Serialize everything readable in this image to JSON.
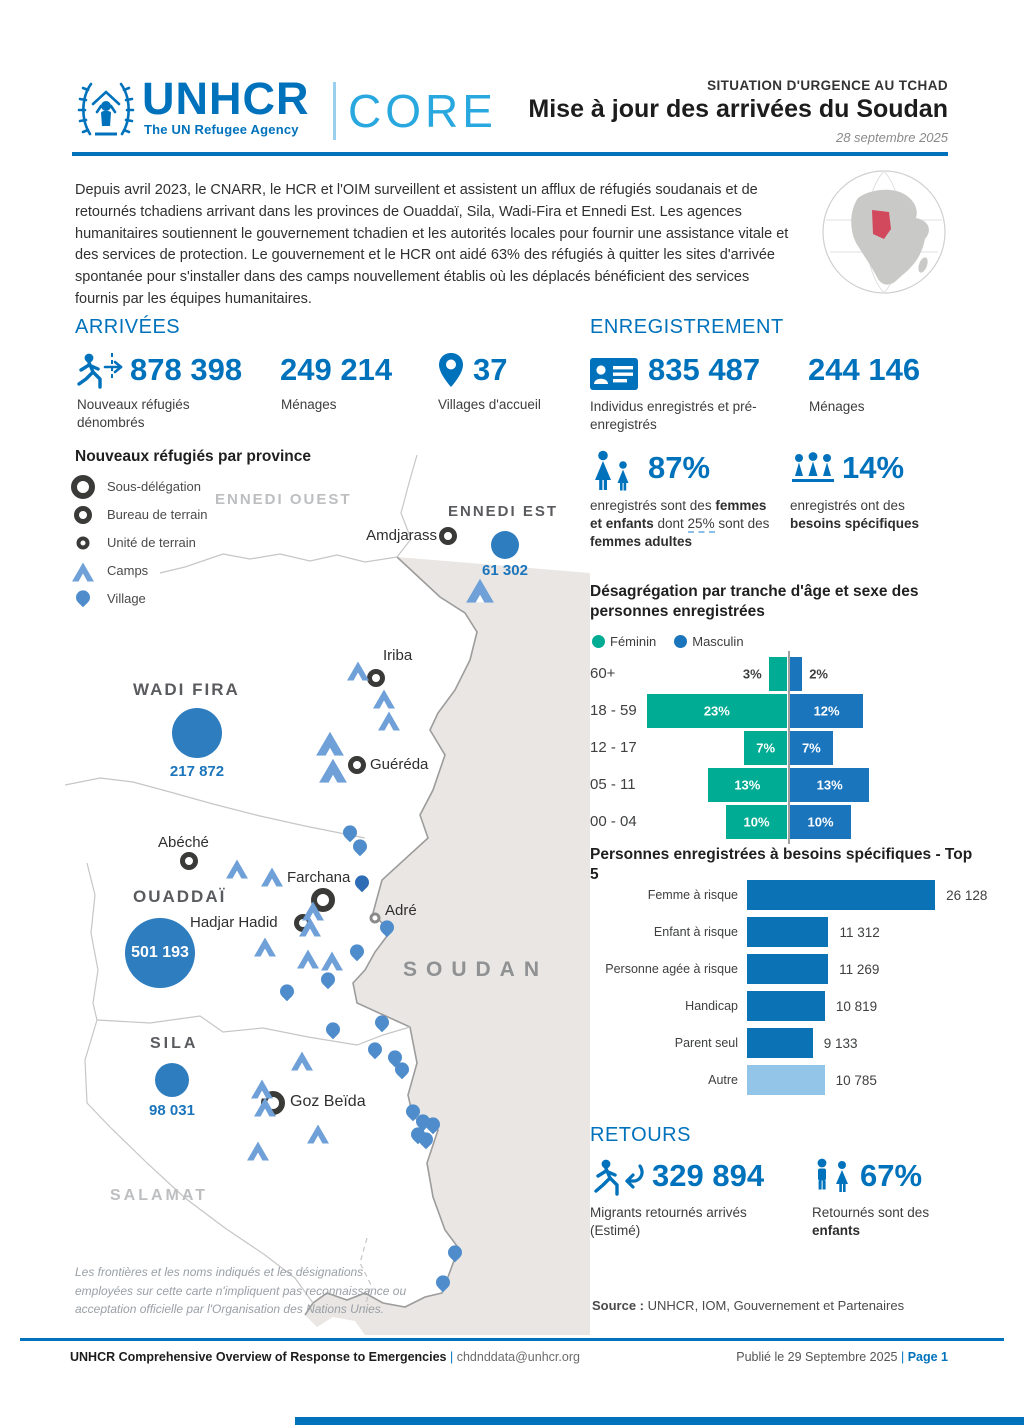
{
  "header": {
    "logo_name": "UNHCR",
    "logo_tagline": "The UN Refugee Agency",
    "logo_core": "CORE",
    "kicker": "SITUATION D'URGENCE AU TCHAD",
    "title": "Mise à jour des arrivées du Soudan",
    "date": "28 septembre 2025"
  },
  "intro": "Depuis avril 2023, le CNARR, le HCR et l'OIM surveillent et assistent un afflux de réfugiés soudanais et de retournés tchadiens arrivant dans les provinces de Ouaddaï, Sila, Wadi-Fira et Ennedi Est. Les agences humanitaires soutiennent le gouvernement tchadien et les autorités locales pour fournir une assistance vitale et des services de protection. Le gouvernement et le HCR ont aidé 63% des réfugiés à quitter les sites d'arrivée spontanée pour s'installer dans des camps nouvellement établis où les déplacés bénéficient des services fournis par les équipes humanitaires.",
  "arrivees": {
    "title": "ARRIVÉES",
    "stats": [
      {
        "value": "878 398",
        "label": "Nouveaux réfugiés dénombrés"
      },
      {
        "value": "249 214",
        "label": "Ménages"
      },
      {
        "value": "37",
        "label": "Villages d'accueil"
      }
    ]
  },
  "map": {
    "title": "Nouveaux réfugiés par province",
    "legend": [
      {
        "label": "Sous-délégation"
      },
      {
        "label": "Bureau de terrain"
      },
      {
        "label": "Unité de terrain"
      },
      {
        "label": "Camps"
      },
      {
        "label": "Village"
      }
    ],
    "provinces": [
      {
        "name": "ENNEDI OUEST"
      },
      {
        "name": "ENNEDI EST"
      },
      {
        "name": "WADI FIRA"
      },
      {
        "name": "OUADDAÏ"
      },
      {
        "name": "SILA"
      },
      {
        "name": "SALAMAT"
      }
    ],
    "country": "SOUDAN",
    "towns": [
      {
        "name": "Amdjarass",
        "type": "bureau-de-terrain"
      },
      {
        "name": "Iriba",
        "type": "bureau-de-terrain"
      },
      {
        "name": "Guéréda",
        "type": "bureau-de-terrain"
      },
      {
        "name": "Abéché",
        "type": "bureau-de-terrain"
      },
      {
        "name": "Farchana",
        "type": "sous-delegation"
      },
      {
        "name": "Hadjar Hadid",
        "type": "bureau-de-terrain"
      },
      {
        "name": "Adré",
        "type": "unite-de-terrain"
      },
      {
        "name": "Goz Beïda",
        "type": "sous-delegation"
      }
    ],
    "bubbles": [
      {
        "province": "ENNEDI EST",
        "value": "61 302"
      },
      {
        "province": "WADI FIRA",
        "value": "217 872"
      },
      {
        "province": "OUADDAÏ",
        "value": "501 193"
      },
      {
        "province": "SILA",
        "value": "98 031"
      }
    ],
    "disclaimer": "Les frontières et les noms indiqués et les désignations employées sur cette carte n'impliquent pas reconnaissance ou acceptation officielle par l'Organisation des Nations Unies."
  },
  "enregistrement": {
    "title": "ENREGISTREMENT",
    "stats": [
      {
        "value": "835 487",
        "label": "Individus enregistrés et pré-enregistrés"
      },
      {
        "value": "244 146",
        "label": "Ménages"
      }
    ],
    "women_children": {
      "value": "87%",
      "text_pre": "enregistrés sont des ",
      "text_bold": "femmes et enfants",
      "text_mid": " dont ",
      "text_underline": "25%",
      "text_mid2": " sont des ",
      "text_bold2": "femmes adultes"
    },
    "specific_needs": {
      "value": "14%",
      "text_pre": "enregistrés ont des ",
      "text_bold": "besoins spécifiques"
    }
  },
  "chart_data": [
    {
      "type": "bar",
      "subtype": "population-pyramid",
      "title": "Désagrégation par tranche d'âge et sexe des personnes enregistrées",
      "categories": [
        "60+",
        "18 - 59",
        "12 - 17",
        "05 - 11",
        "00 - 04"
      ],
      "series": [
        {
          "name": "Féminin",
          "color": "#00AC93",
          "unit": "%",
          "values": [
            3,
            23,
            7,
            13,
            10
          ],
          "labels": [
            "3%",
            "23%",
            "7%",
            "13%",
            "10%"
          ]
        },
        {
          "name": "Masculin",
          "color": "#1B75BC",
          "unit": "%",
          "values": [
            2,
            12,
            7,
            13,
            10
          ],
          "labels": [
            "2%",
            "12%",
            "7%",
            "13%",
            "10%"
          ]
        }
      ],
      "legend_position": "top",
      "grid": false
    },
    {
      "type": "bar",
      "subtype": "horizontal",
      "title": "Personnes enregistrées à besoins spécifiques - Top 5",
      "categories": [
        "Femme à risque",
        "Enfant à risque",
        "Personne agée à risque",
        "Handicap",
        "Parent seul",
        "Autre"
      ],
      "values": [
        26128,
        11312,
        11269,
        10819,
        9133,
        10785
      ],
      "value_labels": [
        "26 128",
        "11 312",
        "11 269",
        "10 819",
        "9 133",
        "10 785"
      ],
      "bar_color": "#0B72B5",
      "last_bar_color": "#93C5E8",
      "grid": false
    }
  ],
  "retours": {
    "title": "RETOURS",
    "stats": [
      {
        "value": "329 894",
        "label": "Migrants retournés arrivés (Estimé)"
      }
    ],
    "children": {
      "value": "67%",
      "text_pre": "Retournés sont des ",
      "text_bold": "enfants"
    }
  },
  "source": {
    "label": "Source :",
    "text": " UNHCR, IOM, Gouvernement et Partenaires"
  },
  "footer": {
    "left_bold": "UNHCR Comprehensive Overview of Response to Emergencies",
    "separator": "|",
    "email": "chdnddata@unhcr.org",
    "right_text": "Publié le 29 Septembre 2025 ",
    "page_sep": "| ",
    "page": "Page 1"
  },
  "colors": {
    "primary_blue": "#0072BC",
    "core_light_blue": "#29A8DF",
    "feminin_teal": "#00AC93",
    "masculin_blue": "#1B75BC",
    "bubble_blue": "#2E7DBF",
    "camp_blue": "#6FA0D8",
    "village_pin_blue": "#4E8CCB",
    "sudan_fill": "#E9E6E3",
    "chad_highlight_red": "#D2485C",
    "autre_bar_light_blue": "#93C5E8"
  }
}
